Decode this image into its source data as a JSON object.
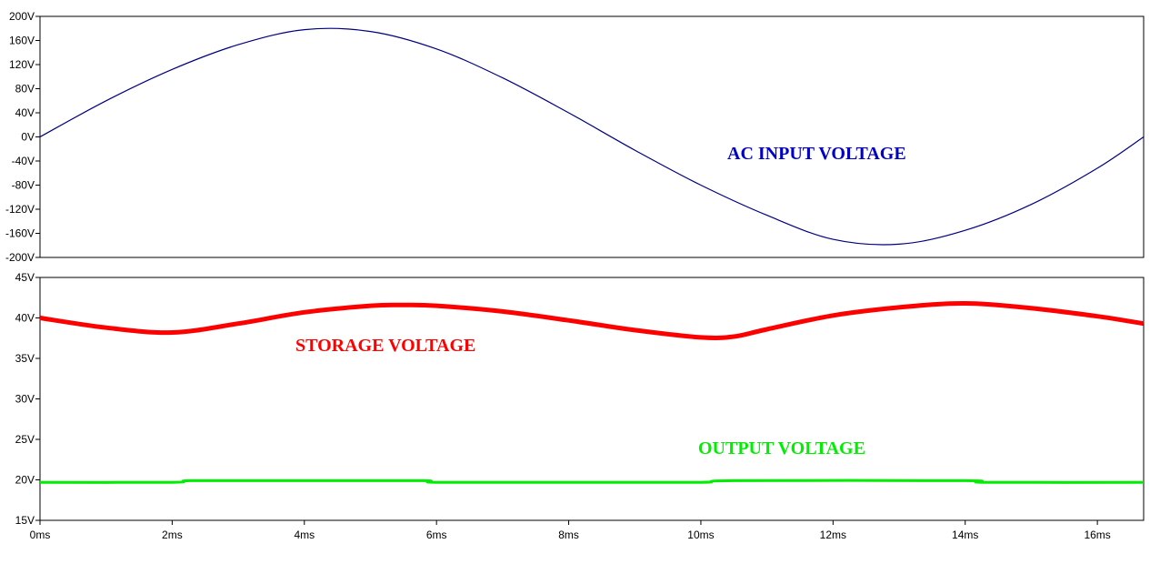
{
  "chart_data": {
    "type": "line",
    "x_unit": "ms",
    "x_range": [
      0,
      16.7
    ],
    "x_ticks": [
      "0ms",
      "2ms",
      "4ms",
      "6ms",
      "8ms",
      "10ms",
      "12ms",
      "14ms",
      "16ms"
    ],
    "x_tick_values": [
      0,
      2,
      4,
      6,
      8,
      10,
      12,
      14,
      16
    ],
    "grid": false,
    "panes": [
      {
        "ylim": [
          -200,
          200
        ],
        "y_ticks": [
          "200V",
          "160V",
          "120V",
          "80V",
          "40V",
          "0V",
          "-40V",
          "-80V",
          "-120V",
          "-160V",
          "-200V"
        ],
        "y_tick_values": [
          200,
          160,
          120,
          80,
          40,
          0,
          -40,
          -80,
          -120,
          -160,
          -200
        ],
        "series": [
          {
            "name": "AC INPUT VOLTAGE",
            "color": "#000080",
            "x": [
              0,
              1,
              2,
              3,
              4,
              5,
              6,
              7,
              8,
              9,
              10,
              11,
              12,
              13,
              14,
              15,
              16,
              16.7
            ],
            "y": [
              0,
              60,
              112,
              153,
              178,
              175,
              146,
              98,
              40,
              -22,
              -80,
              -130,
              -170,
              -178,
              -155,
              -112,
              -52,
              0
            ]
          }
        ]
      },
      {
        "ylim": [
          15,
          45
        ],
        "y_ticks": [
          "45V",
          "40V",
          "35V",
          "30V",
          "25V",
          "20V",
          "15V"
        ],
        "y_tick_values": [
          45,
          40,
          35,
          30,
          25,
          20,
          15
        ],
        "series": [
          {
            "name": "STORAGE VOLTAGE",
            "color": "#ff0000",
            "x": [
              0,
              1,
              2,
              3,
              4,
              5,
              5.5,
              6,
              7,
              8,
              9,
              10,
              10.5,
              11,
              12,
              13,
              14,
              15,
              16,
              16.7
            ],
            "y": [
              40,
              38.8,
              38.2,
              39.3,
              40.7,
              41.5,
              41.6,
              41.5,
              40.8,
              39.7,
              38.5,
              37.6,
              37.7,
              38.6,
              40.3,
              41.3,
              41.8,
              41.2,
              40.2,
              39.3
            ]
          },
          {
            "name": "OUTPUT VOLTAGE",
            "color": "#00ee00",
            "x": [
              0,
              2,
              2.3,
              4,
              5.8,
              6,
              8,
              10,
              10.5,
              14,
              14.3,
              16.7
            ],
            "y": [
              19.7,
              19.7,
              19.9,
              19.9,
              19.9,
              19.7,
              19.7,
              19.7,
              19.9,
              19.9,
              19.7,
              19.7
            ]
          }
        ]
      }
    ]
  }
}
